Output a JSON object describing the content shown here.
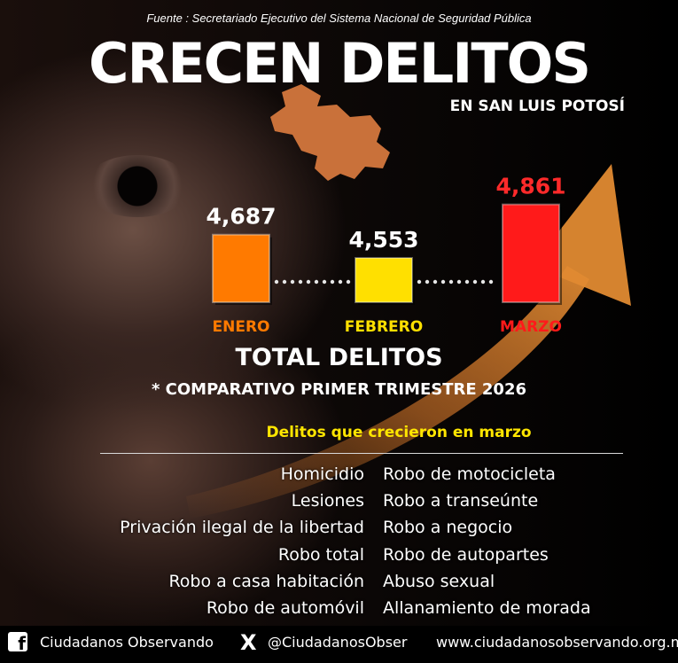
{
  "source": "Fuente : Secretariado Ejecutivo del Sistema Nacional de Seguridad Pública",
  "title": "CRECEN DELITOS",
  "subtitle": "EN SAN LUIS POTOSÍ",
  "chart_data": {
    "type": "bar",
    "categories": [
      "ENERO",
      "FEBRERO",
      "MARZO"
    ],
    "values": [
      4687,
      4553,
      4861
    ],
    "value_labels": [
      "4,687",
      "4,553",
      "4,861"
    ],
    "bar_colors": [
      "#ff7a00",
      "#ffe000",
      "#ff1a1a"
    ],
    "label_colors": [
      "#ffffff",
      "#ffffff",
      "#ff2a2a"
    ],
    "category_colors": [
      "#ff7a00",
      "#ffe000",
      "#ff1a1a"
    ],
    "title": "TOTAL DELITOS",
    "subtitle": "* COMPARATIVO PRIMER TRIMESTRE 2026",
    "xlabel": "",
    "ylabel": "",
    "grid": false
  },
  "list": {
    "heading": "Delitos que crecieron en marzo",
    "left": [
      "Homicidio",
      "Lesiones",
      "Privación ilegal de la libertad",
      "Robo total",
      "Robo a casa habitación",
      "Robo de automóvil"
    ],
    "right": [
      "Robo de motocicleta",
      "Robo a transeúnte",
      "Robo a negocio",
      "Robo de autopartes",
      "Abuso sexual",
      "Allanamiento de morada"
    ]
  },
  "footer": {
    "facebook_icon": "facebook-icon",
    "facebook": "Ciudadanos Observando",
    "x_icon": "x-icon",
    "x_glyph": "X",
    "x_handle": "@CiudadanosObser",
    "website": "www.ciudadanosobservando.org.mx"
  },
  "colors": {
    "arrow": "#d9792a",
    "state": "#c9713a",
    "highlight": "#ffe600"
  }
}
